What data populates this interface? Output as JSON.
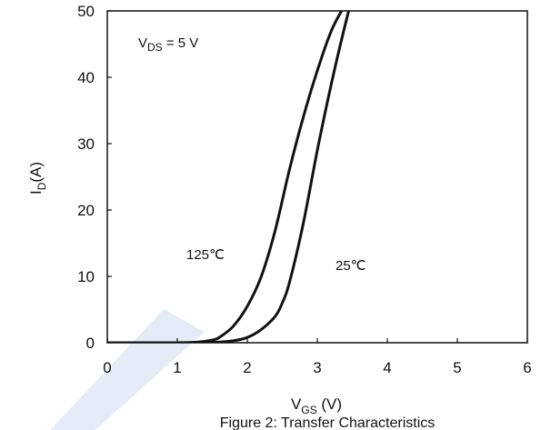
{
  "chart_data": {
    "type": "line",
    "title": "",
    "caption": "Figure 2: Transfer Characteristics",
    "xlabel": {
      "main": "V",
      "sub": "GS",
      "suffix": " (V)"
    },
    "ylabel": {
      "main": "I",
      "sub": "D",
      "suffix": "(A)"
    },
    "xlim": [
      0,
      6
    ],
    "ylim": [
      0,
      50
    ],
    "xticks": [
      0,
      1,
      2,
      3,
      4,
      5,
      6
    ],
    "yticks": [
      0,
      10,
      20,
      30,
      40,
      50
    ],
    "grid": false,
    "legend": "none",
    "condition": {
      "main": "V",
      "sub": "DS",
      "suffix": " = 5 V"
    },
    "series": [
      {
        "name": "125℃",
        "color": "#111111",
        "x": [
          0,
          0.5,
          1.0,
          1.3,
          1.5,
          1.6,
          1.8,
          2.0,
          2.2,
          2.4,
          2.6,
          2.8,
          3.0,
          3.2,
          3.4
        ],
        "y": [
          0,
          0,
          0,
          0.1,
          0.4,
          0.8,
          2.5,
          5.5,
          10,
          17,
          26,
          34,
          41,
          47,
          51
        ]
      },
      {
        "name": "25℃",
        "color": "#111111",
        "x": [
          0,
          1.0,
          1.5,
          1.8,
          2.0,
          2.2,
          2.4,
          2.5,
          2.6,
          2.8,
          3.0,
          3.2,
          3.4,
          3.5
        ],
        "y": [
          0,
          0,
          0.05,
          0.3,
          0.8,
          2,
          4,
          6,
          9,
          18,
          29,
          39,
          48,
          52
        ]
      }
    ]
  }
}
